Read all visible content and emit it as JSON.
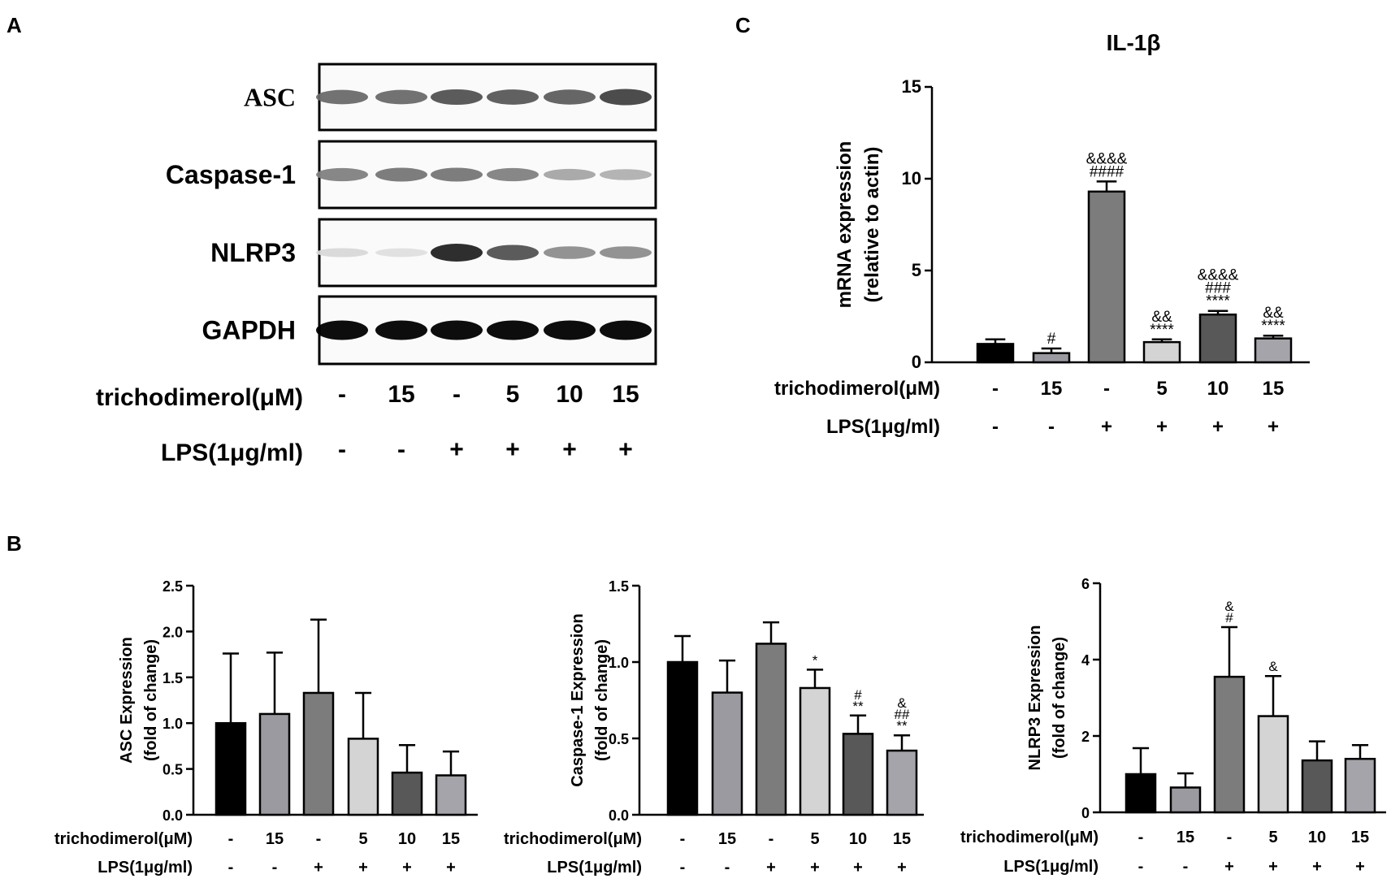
{
  "panels": {
    "a": "A",
    "b": "B",
    "c": "C"
  },
  "blot": {
    "bands": [
      {
        "name": "ASC",
        "intensities": [
          0.55,
          0.55,
          0.65,
          0.62,
          0.6,
          0.72
        ]
      },
      {
        "name": "Caspase-1",
        "intensities": [
          0.45,
          0.5,
          0.5,
          0.45,
          0.3,
          0.25
        ]
      },
      {
        "name": "NLRP3",
        "intensities": [
          0.08,
          0.05,
          0.85,
          0.65,
          0.4,
          0.4
        ]
      },
      {
        "name": "GAPDH",
        "intensities": [
          1.0,
          1.0,
          1.0,
          1.0,
          1.0,
          1.0
        ]
      }
    ],
    "trichodimerol_label": "trichodimerol(μM)",
    "lps_label": "LPS(1μg/ml)",
    "trichodimerol_values": [
      "-",
      "15",
      "-",
      "5",
      "10",
      "15"
    ],
    "lps_values": [
      "-",
      "-",
      "+",
      "+",
      "+",
      "+"
    ]
  },
  "chart_data": [
    {
      "type": "bar",
      "panel": "C",
      "title": "IL-1β",
      "ylabel_line1": "mRNA expression",
      "ylabel_line2": "(relative to actin)",
      "ylim": [
        0,
        15
      ],
      "yticks": [
        "0",
        "5",
        "10",
        "15"
      ],
      "ytick_values": [
        0,
        5,
        10,
        15
      ],
      "categories": [
        "-/-",
        "15/-",
        "-/+",
        "5/+",
        "10/+",
        "15/+"
      ],
      "trichodimerol_label": "trichodimerol(μM)",
      "lps_label": "LPS(1μg/ml)",
      "trichodimerol_values": [
        "-",
        "15",
        "-",
        "5",
        "10",
        "15"
      ],
      "lps_values": [
        "-",
        "-",
        "+",
        "+",
        "+",
        "+"
      ],
      "values": [
        1.0,
        0.5,
        9.3,
        1.1,
        2.6,
        1.3
      ],
      "errors": [
        0.25,
        0.25,
        0.55,
        0.15,
        0.2,
        0.15
      ],
      "colors": [
        "#000000",
        "#9a9aa0",
        "#7c7c7c",
        "#d4d4d4",
        "#585858",
        "#a4a4aa"
      ],
      "annotations": [
        [],
        [
          "#"
        ],
        [
          "&&&&",
          "####"
        ],
        [
          "&&",
          "****"
        ],
        [
          "&&&&",
          "###",
          "****"
        ],
        [
          "&&",
          "****"
        ]
      ]
    },
    {
      "type": "bar",
      "panel": "B",
      "ylabel_line1": "ASC Expression",
      "ylabel_line2": "(fold of change)",
      "ylim": [
        0,
        2.5
      ],
      "yticks": [
        "0.0",
        "0.5",
        "1.0",
        "1.5",
        "2.0",
        "2.5"
      ],
      "ytick_values": [
        0,
        0.5,
        1.0,
        1.5,
        2.0,
        2.5
      ],
      "categories": [
        "-/-",
        "15/-",
        "-/+",
        "5/+",
        "10/+",
        "15/+"
      ],
      "trichodimerol_label": "trichodimerol(μM)",
      "lps_label": "LPS(1μg/ml)",
      "trichodimerol_values": [
        "-",
        "15",
        "-",
        "5",
        "10",
        "15"
      ],
      "lps_values": [
        "-",
        "-",
        "+",
        "+",
        "+",
        "+"
      ],
      "values": [
        1.0,
        1.1,
        1.33,
        0.83,
        0.46,
        0.43
      ],
      "errors": [
        0.76,
        0.67,
        0.8,
        0.5,
        0.3,
        0.26
      ],
      "colors": [
        "#000000",
        "#9a9aa0",
        "#7c7c7c",
        "#d4d4d4",
        "#585858",
        "#a4a4aa"
      ],
      "annotations": [
        [],
        [],
        [],
        [],
        [],
        []
      ]
    },
    {
      "type": "bar",
      "panel": "B",
      "ylabel_line1": "Caspase-1 Expression",
      "ylabel_line2": "(fold of change)",
      "ylim": [
        0,
        1.5
      ],
      "yticks": [
        "0.0",
        "0.5",
        "1.0",
        "1.5"
      ],
      "ytick_values": [
        0,
        0.5,
        1.0,
        1.5
      ],
      "categories": [
        "-/-",
        "15/-",
        "-/+",
        "5/+",
        "10/+",
        "15/+"
      ],
      "trichodimerol_label": "trichodimerol(μM)",
      "lps_label": "LPS(1μg/ml)",
      "trichodimerol_values": [
        "-",
        "15",
        "-",
        "5",
        "10",
        "15"
      ],
      "lps_values": [
        "-",
        "-",
        "+",
        "+",
        "+",
        "+"
      ],
      "values": [
        1.0,
        0.8,
        1.12,
        0.83,
        0.53,
        0.42
      ],
      "errors": [
        0.17,
        0.21,
        0.14,
        0.12,
        0.12,
        0.1
      ],
      "colors": [
        "#000000",
        "#9a9aa0",
        "#7c7c7c",
        "#d4d4d4",
        "#585858",
        "#a4a4aa"
      ],
      "annotations": [
        [],
        [],
        [],
        [
          "*"
        ],
        [
          "#",
          "**"
        ],
        [
          "&",
          "##",
          "**"
        ]
      ]
    },
    {
      "type": "bar",
      "panel": "B",
      "ylabel_line1": "NLRP3 Expression",
      "ylabel_line2": "(fold of change)",
      "ylim": [
        0,
        6
      ],
      "yticks": [
        "0",
        "2",
        "4",
        "6"
      ],
      "ytick_values": [
        0,
        2,
        4,
        6
      ],
      "categories": [
        "-/-",
        "15/-",
        "-/+",
        "5/+",
        "10/+",
        "15/+"
      ],
      "trichodimerol_label": "trichodimerol(μM)",
      "lps_label": "LPS(1μg/ml)",
      "trichodimerol_values": [
        "-",
        "15",
        "-",
        "5",
        "10",
        "15"
      ],
      "lps_values": [
        "-",
        "-",
        "+",
        "+",
        "+",
        "+"
      ],
      "values": [
        1.0,
        0.65,
        3.55,
        2.52,
        1.36,
        1.4
      ],
      "errors": [
        0.68,
        0.37,
        1.3,
        1.05,
        0.5,
        0.36
      ],
      "colors": [
        "#000000",
        "#9a9aa0",
        "#7c7c7c",
        "#d4d4d4",
        "#585858",
        "#a4a4aa"
      ],
      "annotations": [
        [],
        [],
        [
          "&",
          "#"
        ],
        [
          "&"
        ],
        [],
        []
      ]
    }
  ]
}
